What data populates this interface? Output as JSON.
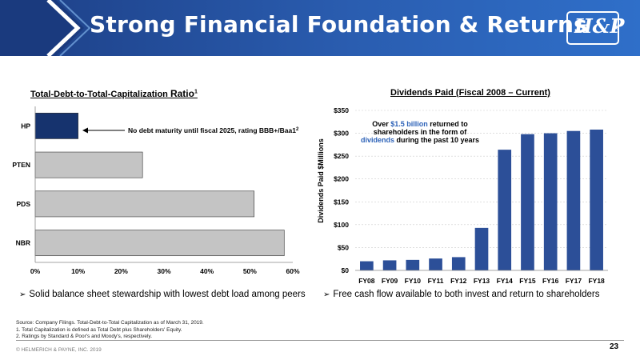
{
  "header": {
    "title": "Strong Financial Foundation & Returns",
    "logo_text": "H&P"
  },
  "colors": {
    "banner_dark": "#1d3f86",
    "banner_light": "#2f6fc9",
    "hp_bar": "#16336e",
    "peer_bar": "#c4c4c4",
    "dividend_bar": "#2c4f98",
    "highlight_text": "#2e63b8"
  },
  "left_chart": {
    "title_main": "Total-Debt-to-Total-Capitalization ",
    "title_ratio": "Ratio",
    "title_sup": "1",
    "annotation": "No debt maturity until fiscal 2025, rating BBB+/Baa1",
    "annotation_sup": "2"
  },
  "right_chart": {
    "title": "Dividends Paid (Fiscal 2008 – Current)",
    "callout_line1_prefix": "Over ",
    "callout_line1_highlight": "$1.5 billion",
    "callout_line1_suffix": " returned to",
    "callout_line2": "shareholders in the form of",
    "callout_line3_highlight": "dividends",
    "callout_line3_suffix": " during the past 10 years"
  },
  "chart_data": [
    {
      "type": "bar",
      "orientation": "horizontal",
      "title": "Total-Debt-to-Total-Capitalization Ratio",
      "categories": [
        "HP",
        "PTEN",
        "PDS",
        "NBR"
      ],
      "values": [
        10,
        25,
        51,
        58
      ],
      "xlim": [
        0,
        60
      ],
      "tick_values": [
        0,
        10,
        20,
        30,
        40,
        50,
        60
      ],
      "tick_labels": [
        "0%",
        "10%",
        "20%",
        "30%",
        "40%",
        "50%",
        "60%"
      ],
      "grid": false
    },
    {
      "type": "bar",
      "title": "Dividends Paid (Fiscal 2008 – Current)",
      "ylabel": "Dividends Paid $Millions",
      "categories": [
        "FY08",
        "FY09",
        "FY10",
        "FY11",
        "FY12",
        "FY13",
        "FY14",
        "FY15",
        "FY16",
        "FY17",
        "FY18"
      ],
      "values": [
        20,
        22,
        23,
        26,
        29,
        93,
        264,
        298,
        300,
        305,
        308
      ],
      "ylim": [
        0,
        350
      ],
      "tick_values": [
        0,
        50,
        100,
        150,
        200,
        250,
        300,
        350
      ],
      "tick_labels": [
        "$0",
        "$50",
        "$100",
        "$150",
        "$200",
        "$250",
        "$300",
        "$350"
      ],
      "grid": true
    }
  ],
  "bullets": {
    "left": "Solid balance sheet stewardship with lowest debt load among peers",
    "right": "Free cash flow available to both invest and return to shareholders"
  },
  "notes": {
    "source": "Source: Company Filings.  Total-Debt-to-Total Capitalization as of March 31, 2019.",
    "note1": "1. Total Capitalization is defined as Total Debt plus Shareholders' Equity.",
    "note2": "2. Ratings by Standard & Poor's and Moody's, respectively."
  },
  "footer": {
    "copyright": "© HELMERICH & PAYNE, INC. 2019",
    "page_number": "23"
  }
}
